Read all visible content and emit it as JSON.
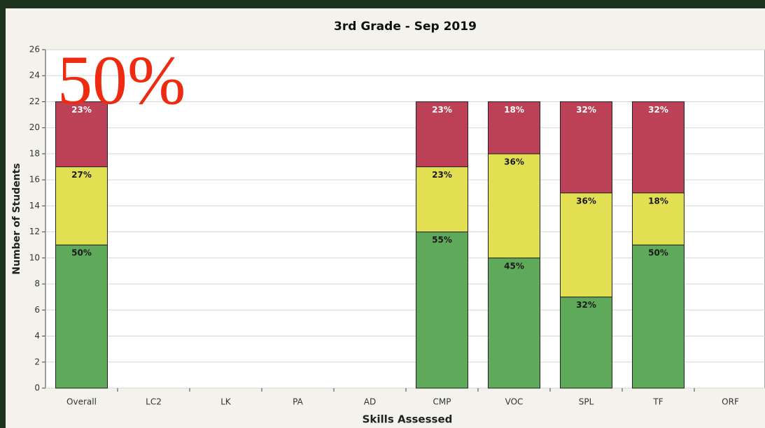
{
  "chart_data": {
    "type": "stacked_bar",
    "title": "3rd Grade - Sep 2019",
    "annotation": "50%",
    "y_label": "Number of Students",
    "x_label": "Skills Assessed",
    "categories": [
      "Overall",
      "LC2",
      "LK",
      "PA",
      "AD",
      "CMP",
      "VOC",
      "SPL",
      "TF",
      "ORF"
    ],
    "series": [
      {
        "color": "#5fa95b",
        "label_color": "#1a1a1a",
        "values": [
          11,
          null,
          null,
          null,
          null,
          12,
          10,
          7,
          11,
          null
        ],
        "percent_labels": [
          "50%",
          null,
          null,
          null,
          null,
          "55%",
          "45%",
          "32%",
          "50%",
          null
        ]
      },
      {
        "color": "#e2e052",
        "label_color": "#1a1a1a",
        "values": [
          6,
          null,
          null,
          null,
          null,
          5,
          8,
          8,
          4,
          null
        ],
        "percent_labels": [
          "27%",
          null,
          null,
          null,
          null,
          "23%",
          "36%",
          "36%",
          "18%",
          null
        ]
      },
      {
        "color": "#bc4156",
        "label_color": "#ffffff",
        "values": [
          5,
          null,
          null,
          null,
          null,
          5,
          4,
          7,
          7,
          null
        ],
        "percent_labels": [
          "23%",
          null,
          null,
          null,
          null,
          "23%",
          "18%",
          "32%",
          "32%",
          null
        ]
      }
    ],
    "ylim": [
      0,
      26
    ],
    "yticks": [
      0,
      2,
      4,
      6,
      8,
      10,
      12,
      14,
      16,
      18,
      20,
      22,
      24,
      26
    ],
    "grid": true
  }
}
